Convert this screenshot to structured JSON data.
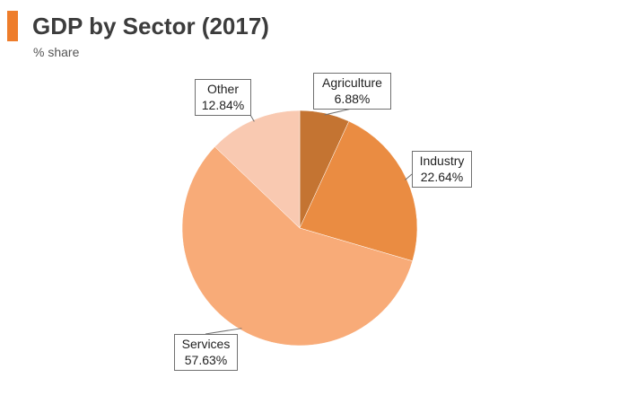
{
  "header": {
    "title": "GDP by Sector (2017)",
    "subtitle": "% share",
    "accent_color": "#ee7d2b"
  },
  "chart_data": {
    "type": "pie",
    "title": "GDP by Sector (2017)",
    "subtitle": "% share",
    "unit": "%",
    "start_angle_deg": 0,
    "direction": "clockwise",
    "slices": [
      {
        "name": "Agriculture",
        "value": 6.88,
        "label": "6.88%",
        "color": "#c47432"
      },
      {
        "name": "Industry",
        "value": 22.64,
        "label": "22.64%",
        "color": "#ea8c42"
      },
      {
        "name": "Services",
        "value": 57.63,
        "label": "57.63%",
        "color": "#f8ab78"
      },
      {
        "name": "Other",
        "value": 12.84,
        "label": "12.84%",
        "color": "#f9c9b1"
      }
    ]
  }
}
